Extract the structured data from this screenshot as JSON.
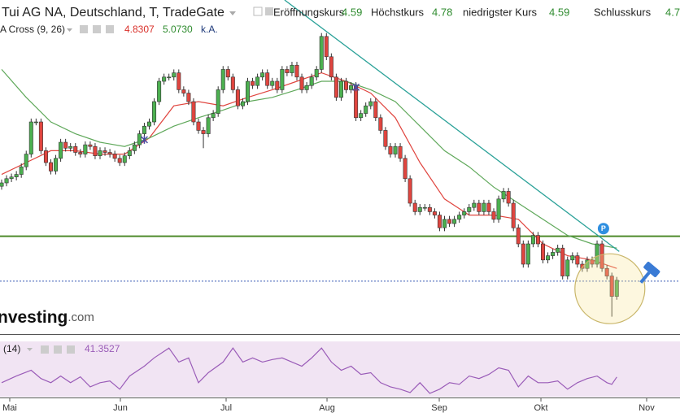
{
  "chart_data": {
    "type": "candlestick",
    "title": "Tui AG NA, Deutschland, T, TradeGate",
    "quote": [
      {
        "label": "Eröffnungskurs",
        "value": "4.59"
      },
      {
        "label": "Höchstkurs",
        "value": "4.78"
      },
      {
        "label": "niedrigster Kurs",
        "value": "4.59"
      },
      {
        "label": "Schlusskurs",
        "value": "4.7"
      }
    ],
    "indicator": {
      "name": "A Cross (9, 26)",
      "values": [
        "4.8307",
        "5.0730",
        "k.A."
      ],
      "colors": [
        "#d9302a",
        "#2e8b2e",
        "#1f3a7a"
      ]
    },
    "open": [
      5.8,
      5.84,
      5.89,
      5.91,
      5.94,
      6.03,
      6.18,
      6.56,
      6.56,
      6.22,
      6.08,
      5.98,
      6.13,
      6.32,
      6.25,
      6.27,
      6.2,
      6.18,
      6.29,
      6.27,
      6.16,
      6.22,
      6.2,
      6.18,
      6.13,
      6.08,
      6.16,
      6.22,
      6.29,
      6.42,
      6.51,
      6.56,
      6.8,
      7.04,
      7.09,
      7.09,
      7.14,
      6.94,
      6.9,
      6.8,
      6.56,
      6.46,
      6.42,
      6.61,
      6.66,
      6.94,
      7.18,
      7.09,
      6.94,
      6.75,
      6.8,
      7.04,
      6.99,
      7.09,
      7.14,
      6.99,
      7.04,
      6.94,
      7.18,
      7.14,
      7.23,
      7.09,
      6.94,
      6.99,
      7.09,
      7.18,
      7.57,
      7.33,
      7.09,
      6.85,
      7.04,
      6.94,
      6.99,
      6.61,
      6.66,
      6.75,
      6.8,
      6.61,
      6.46,
      6.27,
      6.18,
      6.27,
      6.13,
      5.89,
      5.6,
      5.5,
      5.55,
      5.55,
      5.5,
      5.46,
      5.31,
      5.41,
      5.36,
      5.41,
      5.46,
      5.5,
      5.55,
      5.6,
      5.5,
      5.6,
      5.5,
      5.41,
      5.65,
      5.74,
      5.6,
      5.31,
      5.12,
      4.88,
      5.12,
      5.22,
      5.12,
      4.93,
      4.98,
      5.02,
      5.07,
      4.74,
      4.93,
      4.98,
      4.88,
      4.83,
      4.93,
      4.88,
      5.12,
      4.83,
      4.74,
      4.5
    ],
    "high": [
      5.88,
      5.93,
      5.95,
      5.98,
      6.07,
      6.22,
      6.6,
      6.6,
      6.6,
      6.26,
      6.12,
      6.17,
      6.36,
      6.36,
      6.31,
      6.31,
      6.24,
      6.33,
      6.33,
      6.31,
      6.26,
      6.26,
      6.24,
      6.22,
      6.17,
      6.2,
      6.26,
      6.33,
      6.46,
      6.55,
      6.6,
      6.84,
      7.08,
      7.13,
      7.13,
      7.18,
      7.18,
      6.98,
      6.94,
      6.84,
      6.6,
      6.5,
      6.65,
      6.7,
      6.98,
      7.22,
      7.22,
      7.13,
      6.98,
      6.84,
      7.08,
      7.08,
      7.13,
      7.18,
      7.18,
      7.08,
      7.08,
      7.22,
      7.22,
      7.27,
      7.27,
      7.13,
      7.03,
      7.13,
      7.22,
      7.61,
      7.61,
      7.37,
      7.13,
      7.08,
      7.08,
      7.03,
      7.03,
      6.7,
      6.79,
      6.84,
      6.84,
      6.65,
      6.5,
      6.31,
      6.31,
      6.31,
      6.17,
      5.93,
      5.64,
      5.59,
      5.59,
      5.59,
      5.54,
      5.5,
      5.45,
      5.45,
      5.45,
      5.5,
      5.54,
      5.59,
      5.64,
      5.64,
      5.64,
      5.64,
      5.54,
      5.69,
      5.78,
      5.78,
      5.64,
      5.35,
      5.16,
      5.16,
      5.26,
      5.26,
      5.16,
      5.02,
      5.06,
      5.11,
      5.11,
      4.97,
      5.02,
      5.02,
      4.92,
      4.97,
      4.97,
      5.16,
      5.16,
      4.87,
      4.78,
      4.73
    ],
    "low": [
      5.76,
      5.8,
      5.85,
      5.87,
      5.9,
      5.99,
      6.14,
      6.52,
      6.18,
      6.04,
      5.94,
      5.94,
      6.09,
      6.21,
      6.21,
      6.16,
      6.14,
      6.14,
      6.23,
      6.12,
      6.12,
      6.16,
      6.14,
      6.09,
      6.04,
      6.04,
      6.12,
      6.18,
      6.25,
      6.38,
      6.47,
      6.52,
      6.76,
      7.0,
      7.05,
      7.05,
      6.9,
      6.86,
      6.76,
      6.52,
      6.42,
      6.25,
      6.38,
      6.57,
      6.62,
      6.9,
      7.05,
      6.9,
      6.71,
      6.71,
      6.76,
      6.95,
      6.95,
      7.05,
      6.95,
      6.95,
      6.9,
      6.9,
      7.1,
      7.1,
      7.05,
      6.9,
      6.9,
      6.95,
      7.05,
      7.14,
      7.29,
      7.05,
      6.81,
      6.81,
      6.9,
      6.9,
      6.57,
      6.57,
      6.62,
      6.71,
      6.57,
      6.42,
      6.23,
      6.14,
      6.14,
      6.09,
      5.85,
      5.56,
      5.46,
      5.46,
      5.51,
      5.46,
      5.42,
      5.27,
      5.27,
      5.32,
      5.32,
      5.37,
      5.42,
      5.46,
      5.51,
      5.46,
      5.46,
      5.46,
      5.37,
      5.37,
      5.61,
      5.56,
      5.27,
      5.08,
      4.84,
      4.84,
      5.08,
      5.08,
      4.89,
      4.89,
      4.94,
      4.98,
      4.7,
      4.7,
      4.89,
      4.84,
      4.79,
      4.79,
      4.84,
      4.84,
      4.79,
      4.7,
      4.26,
      4.46
    ],
    "close": [
      5.84,
      5.89,
      5.91,
      5.94,
      6.03,
      6.18,
      6.56,
      6.56,
      6.22,
      6.08,
      5.98,
      6.13,
      6.32,
      6.25,
      6.27,
      6.2,
      6.18,
      6.29,
      6.27,
      6.16,
      6.22,
      6.2,
      6.18,
      6.13,
      6.08,
      6.16,
      6.22,
      6.29,
      6.42,
      6.51,
      6.56,
      6.8,
      7.04,
      7.09,
      7.09,
      7.14,
      6.94,
      6.9,
      6.8,
      6.56,
      6.46,
      6.42,
      6.61,
      6.66,
      6.94,
      7.18,
      7.09,
      6.94,
      6.75,
      6.8,
      7.04,
      6.99,
      7.09,
      7.14,
      6.99,
      7.04,
      6.94,
      7.18,
      7.14,
      7.23,
      7.09,
      6.94,
      6.99,
      7.09,
      7.18,
      7.57,
      7.33,
      7.09,
      6.85,
      7.04,
      6.94,
      6.99,
      6.61,
      6.66,
      6.75,
      6.8,
      6.61,
      6.46,
      6.27,
      6.18,
      6.27,
      6.13,
      5.89,
      5.6,
      5.5,
      5.55,
      5.55,
      5.5,
      5.46,
      5.31,
      5.41,
      5.36,
      5.41,
      5.46,
      5.5,
      5.55,
      5.6,
      5.5,
      5.6,
      5.5,
      5.41,
      5.65,
      5.74,
      5.6,
      5.31,
      5.12,
      4.88,
      5.12,
      5.22,
      5.12,
      4.93,
      4.98,
      5.02,
      5.07,
      4.74,
      4.93,
      4.98,
      4.88,
      4.83,
      4.93,
      4.88,
      5.12,
      4.83,
      4.74,
      4.5,
      4.69
    ],
    "up_color": "#4cb050",
    "down_color": "#e0453f",
    "xlim": [
      -0.33,
      137.85
    ],
    "ylim": [
      4.0,
      8.0
    ],
    "xticks": [
      {
        "value": 1.65,
        "label": "Mai"
      },
      {
        "value": 24.13,
        "label": "Jun"
      },
      {
        "value": 45.62,
        "label": "Jul"
      },
      {
        "value": 66.12,
        "label": "Aug"
      },
      {
        "value": 88.93,
        "label": "Sep"
      },
      {
        "value": 109.59,
        "label": "Okt"
      },
      {
        "value": 131.07,
        "label": "Nov"
      }
    ],
    "moving_averages": [
      {
        "color": "#e0453f",
        "x": [
          0,
          5,
          10,
          15,
          20,
          25,
          30,
          35,
          40,
          45,
          50,
          55,
          60,
          65,
          70,
          75,
          80,
          85,
          90,
          95,
          100,
          105,
          110,
          115,
          120,
          125
        ],
        "values": [
          5.94,
          6.08,
          6.22,
          6.22,
          6.18,
          6.18,
          6.37,
          6.75,
          6.8,
          6.75,
          6.85,
          6.94,
          7.04,
          7.14,
          7.04,
          6.9,
          6.61,
          6.08,
          5.65,
          5.46,
          5.46,
          5.41,
          5.12,
          4.98,
          4.93,
          4.83
        ]
      },
      {
        "color": "#5fa85a",
        "x": [
          0,
          5,
          10,
          15,
          20,
          25,
          30,
          35,
          40,
          45,
          50,
          55,
          60,
          65,
          70,
          75,
          80,
          85,
          90,
          95,
          100,
          105,
          110,
          115,
          120,
          125
        ],
        "values": [
          7.18,
          6.85,
          6.56,
          6.42,
          6.32,
          6.27,
          6.37,
          6.51,
          6.61,
          6.7,
          6.8,
          6.85,
          6.94,
          7.04,
          7.04,
          6.94,
          6.8,
          6.51,
          6.22,
          6.03,
          5.79,
          5.6,
          5.41,
          5.22,
          5.12,
          5.07
        ]
      }
    ],
    "levels": [
      {
        "value": 5.21,
        "color": "#4d8a2a",
        "dashed": false
      },
      {
        "value": 4.68,
        "color": "#3b5bb5",
        "dashed": true
      }
    ],
    "trendline": {
      "x": [
        57.5,
        125.5
      ],
      "values": [
        8.0,
        5.03
      ],
      "color": "#2aa198"
    },
    "markers": {
      "x": [
        29,
        72
      ],
      "values": [
        6.35,
        6.97
      ],
      "color": "#4a4aa0"
    },
    "highlight": {
      "x": 123.6,
      "value": 4.59
    },
    "badge": {
      "text": "P",
      "x": 122.3,
      "value": 5.3
    },
    "watermark": [
      "nvesting",
      ".com"
    ],
    "rsi": {
      "label": "(14)",
      "value_label": "41.3527",
      "color": "#9a5cb8",
      "ylim": [
        20,
        80
      ],
      "x": [
        0,
        3,
        6,
        8,
        10,
        12,
        14,
        16,
        18,
        20,
        22,
        24,
        26,
        29,
        31,
        34,
        36,
        38,
        40,
        42,
        45,
        47,
        49,
        51,
        53,
        55,
        57,
        59,
        61,
        63,
        65,
        67,
        69,
        71,
        73,
        75,
        77,
        79,
        81,
        83,
        85,
        87,
        89,
        91,
        93,
        95,
        97,
        99,
        101,
        103,
        105,
        107,
        109,
        111,
        113,
        115,
        117,
        119,
        121,
        123,
        124,
        125
      ],
      "values": [
        35.2,
        42.4,
        48.7,
        39.7,
        35.2,
        42.4,
        35.2,
        41.5,
        30.7,
        35.2,
        37.0,
        28.1,
        42.4,
        53.1,
        62.1,
        72.8,
        57.6,
        62.1,
        35.2,
        46.0,
        57.6,
        72.8,
        57.6,
        62.1,
        57.6,
        60.3,
        62.1,
        57.6,
        53.1,
        62.1,
        72.8,
        57.6,
        48.7,
        53.1,
        44.2,
        46.0,
        35.2,
        30.7,
        28.1,
        24.5,
        35.2,
        23.6,
        28.1,
        35.2,
        33.4,
        42.4,
        39.7,
        44.2,
        51.3,
        48.7,
        30.7,
        42.4,
        35.2,
        35.2,
        37.0,
        28.1,
        35.2,
        39.7,
        42.4,
        35.2,
        33.4,
        41.3527
      ]
    }
  }
}
